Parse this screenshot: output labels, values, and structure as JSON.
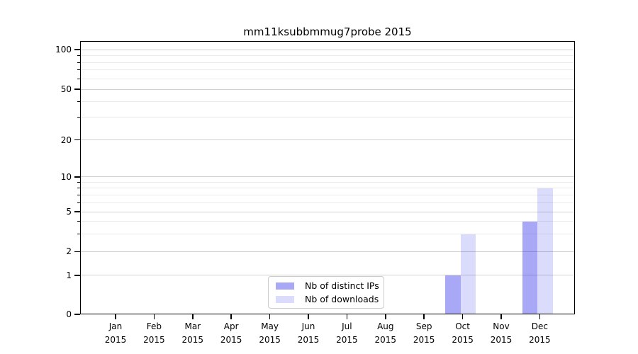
{
  "title": "mm11ksubbmmug7probe 2015",
  "chart_data": {
    "type": "bar",
    "title": "mm11ksubbmmug7probe 2015",
    "categories": [
      "Jan",
      "Feb",
      "Mar",
      "Apr",
      "May",
      "Jun",
      "Jul",
      "Aug",
      "Sep",
      "Oct",
      "Nov",
      "Dec"
    ],
    "category_year": "2015",
    "series": [
      {
        "name": "Nb of distinct IPs",
        "color": "rgba(0,0,230,0.34)",
        "values": [
          0,
          0,
          0,
          0,
          0,
          0,
          0,
          0,
          0,
          1,
          0,
          4
        ]
      },
      {
        "name": "Nb of downloads",
        "color": "rgba(0,0,230,0.14)",
        "values": [
          0,
          0,
          0,
          0,
          0,
          0,
          0,
          0,
          0,
          3,
          0,
          8
        ]
      }
    ],
    "y_axis": {
      "scale": "symlog",
      "major_ticks": [
        0,
        1,
        2,
        5,
        10,
        20,
        50,
        100
      ],
      "major_tick_labels": [
        "0",
        "1",
        "2",
        "5",
        "10",
        "20",
        "50",
        "100"
      ],
      "minor_gridlines": [
        3,
        4,
        6,
        7,
        8,
        9,
        30,
        40,
        60,
        70,
        80,
        90
      ],
      "ylim": [
        0,
        110
      ]
    },
    "x_axis": {
      "label_format": "month-over-year"
    },
    "legend": {
      "position": "bottom-center",
      "entries": [
        "Nb of distinct IPs",
        "Nb of downloads"
      ]
    },
    "grid": true,
    "colors": {
      "background": "#ffffff",
      "axis": "#000000",
      "text": "#000000",
      "grid_major": "#d0d0d0",
      "grid_minor": "#eaeaea",
      "legend_border": "#cccccc",
      "bar_distinct_ips": "rgba(0,0,230,0.34)",
      "bar_downloads": "rgba(0,0,230,0.14)"
    }
  }
}
